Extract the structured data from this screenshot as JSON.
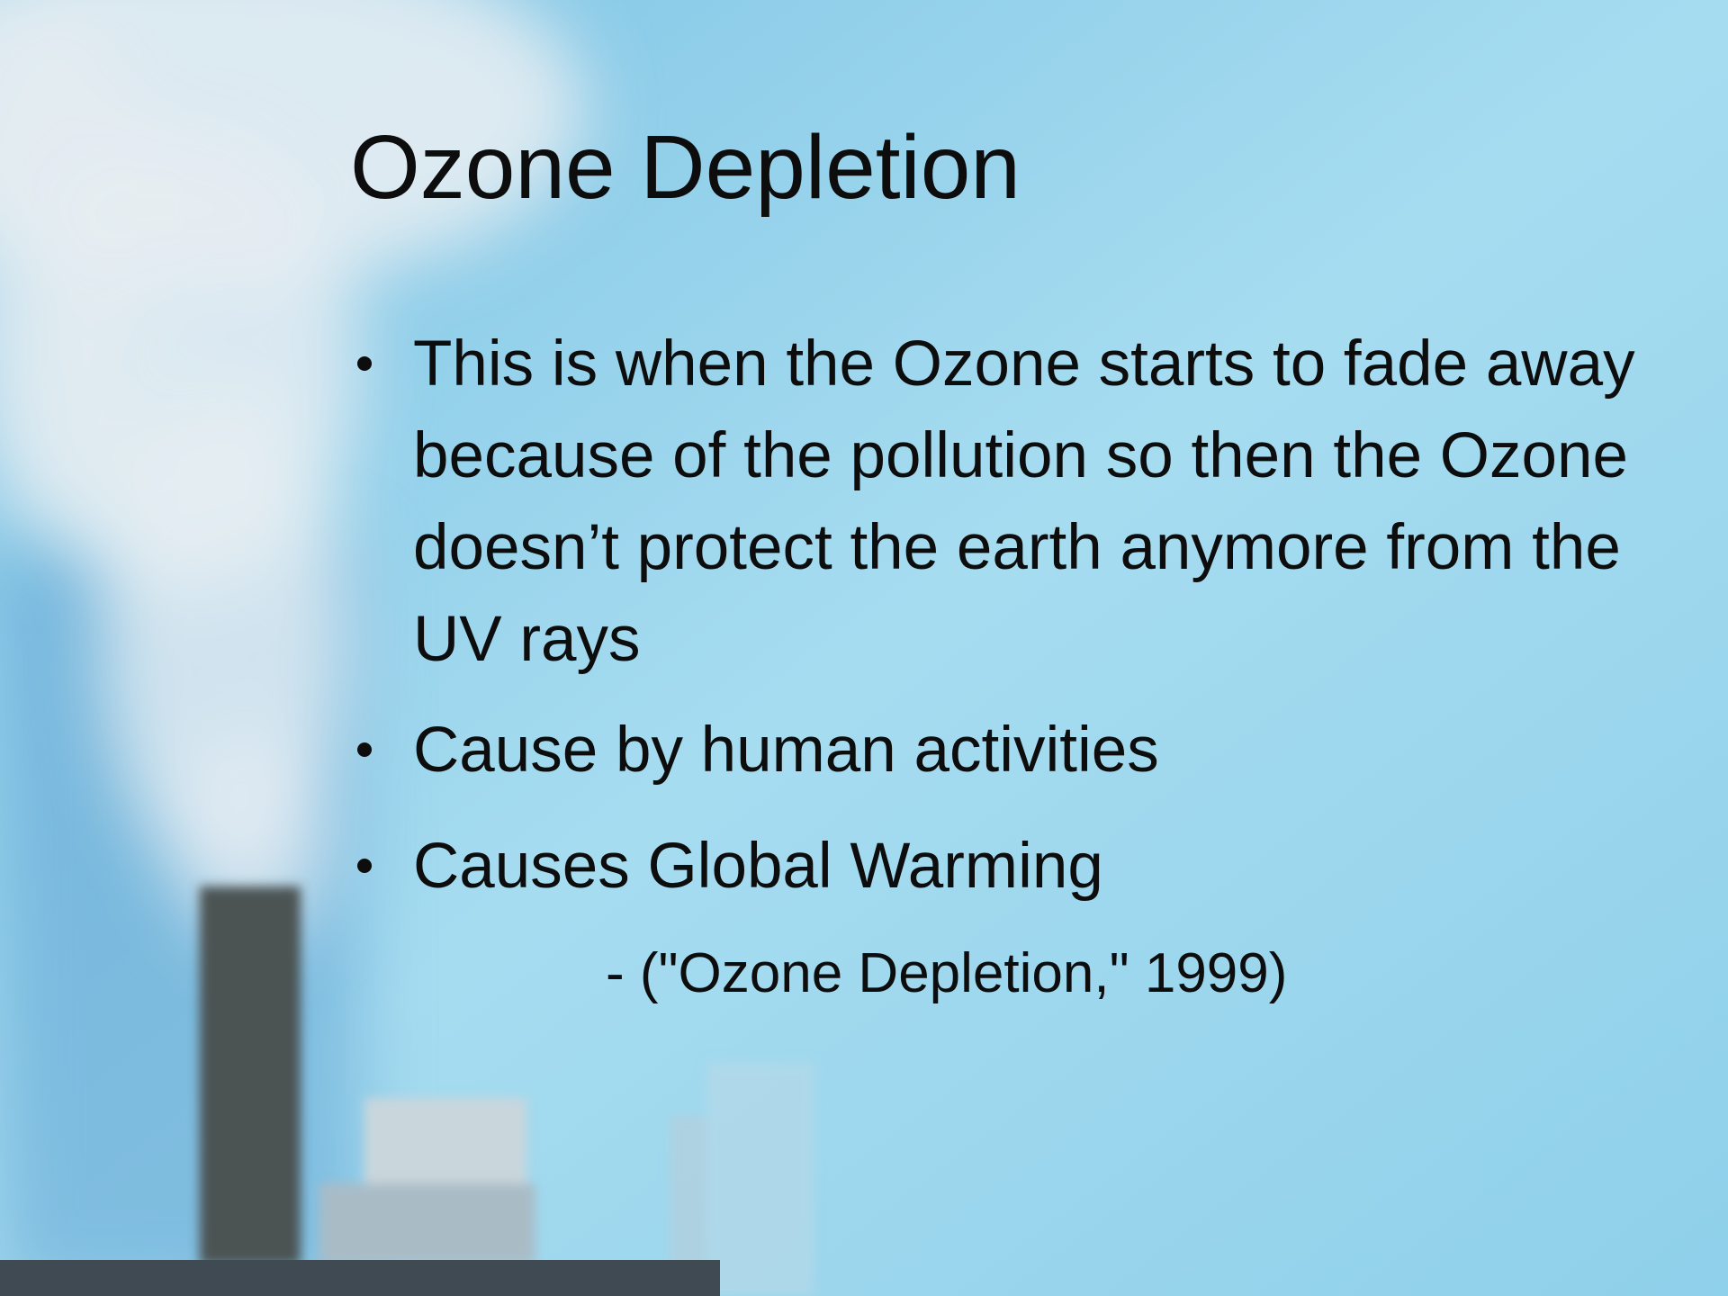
{
  "slide": {
    "title": "Ozone Depletion",
    "bullets": [
      "This is when the Ozone starts to fade away because of the pollution so then the Ozone doesn’t protect the earth anymore from the UV rays",
      "Cause by human activities",
      "Causes Global Warming"
    ],
    "citation": "- (\"Ozone Depletion,\" 1999)"
  }
}
